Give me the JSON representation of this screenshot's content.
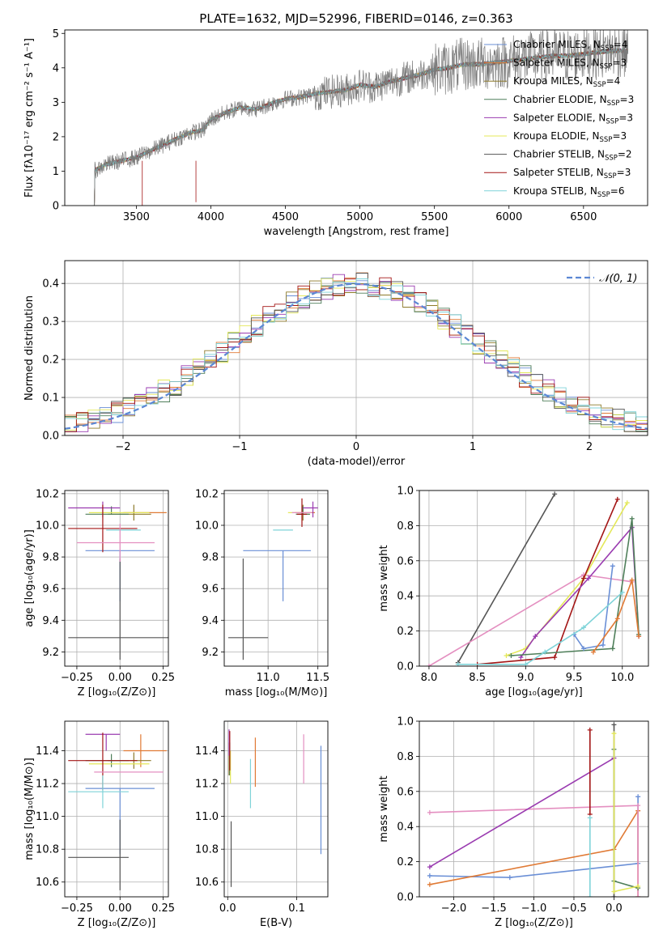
{
  "chart_data": [
    {
      "id": "spectrum",
      "type": "line",
      "title": "PLATE=1632, MJD=52996, FIBERID=0146, z=0.363",
      "xlabel": "wavelength [Angstrom, rest frame]",
      "ylabel": "Flux [fλ10⁻¹⁷ erg cm⁻² s⁻¹ A⁻¹]",
      "xlim": [
        3020,
        6930
      ],
      "ylim": [
        0,
        5.1
      ],
      "xticks": [
        3500,
        4000,
        4500,
        5000,
        5500,
        6000,
        6500
      ],
      "yticks": [
        0,
        1,
        2,
        3,
        4,
        5
      ],
      "grid": false,
      "legend_position": "right",
      "data_range": [
        3210,
        6800
      ],
      "model_points": {
        "x": [
          3210,
          3300,
          3400,
          3500,
          3550,
          3650,
          3750,
          3850,
          3950,
          4000,
          4100,
          4200,
          4300,
          4400,
          4500,
          4600,
          4700,
          4800,
          4900,
          5000,
          5100,
          5200,
          5300,
          5400,
          5500,
          5600,
          5700,
          5800,
          5900,
          6000,
          6100,
          6200,
          6300,
          6400,
          6500,
          6600,
          6700,
          6800
        ],
        "y": [
          1.0,
          1.2,
          1.3,
          1.4,
          1.5,
          1.7,
          1.9,
          2.1,
          2.2,
          2.5,
          2.7,
          2.85,
          2.8,
          2.95,
          3.1,
          3.15,
          3.25,
          3.3,
          3.35,
          3.5,
          3.45,
          3.6,
          3.7,
          3.8,
          3.95,
          4.0,
          4.1,
          4.1,
          4.15,
          4.2,
          4.25,
          4.3,
          4.35,
          4.35,
          4.4,
          4.45,
          4.5,
          4.5
        ]
      },
      "series": [
        {
          "name": "Chabrier MILES",
          "nssp": "4",
          "color": "#6a8fd6"
        },
        {
          "name": "Salpeter MILES",
          "nssp": "3",
          "color": "#e07a35"
        },
        {
          "name": "Kroupa MILES",
          "nssp": "4",
          "color": "#8d7a2a"
        },
        {
          "name": "Chabrier ELODIE",
          "nssp": "3",
          "color": "#4f7f5a"
        },
        {
          "name": "Salpeter ELODIE",
          "nssp": "3",
          "color": "#9a3bb0"
        },
        {
          "name": "Kroupa ELODIE",
          "nssp": "3",
          "color": "#e4e85a"
        },
        {
          "name": "Chabrier STELIB",
          "nssp": "2",
          "color": "#555555"
        },
        {
          "name": "Salpeter STELIB",
          "nssp": "3",
          "color": "#a31515"
        },
        {
          "name": "Kroupa STELIB",
          "nssp": "6",
          "color": "#7fd3d8"
        }
      ]
    },
    {
      "id": "residuals",
      "type": "histogram",
      "xlabel": "(data-model)/error",
      "ylabel": "Normed distribution",
      "xlim": [
        -2.5,
        2.5
      ],
      "ylim": [
        0,
        0.46
      ],
      "xticks": [
        -2,
        -1,
        0,
        1,
        2
      ],
      "yticks": [
        0.0,
        0.1,
        0.2,
        0.3,
        0.4
      ],
      "grid": true,
      "legend_position": "top-right",
      "reference_curve": {
        "name": "𝒩(0, 1)",
        "color": "#5b87d4",
        "style": "dashed"
      },
      "bin_width": 0.1,
      "bin_start": -2.5
    },
    {
      "id": "age_vs_Z",
      "type": "errorbar",
      "xlabel": "Z [log₁₀(Z/Z⊙)]",
      "ylabel": "age  [log₁₀(age/yr)]",
      "xlim": [
        -0.32,
        0.28
      ],
      "ylim": [
        9.11,
        10.22
      ],
      "xticks": [
        -0.25,
        0.0,
        0.25
      ],
      "xticklabels": [
        "−0.25",
        "0.00",
        "0.25"
      ],
      "yticks": [
        9.2,
        9.4,
        9.6,
        9.8,
        10.0,
        10.2
      ],
      "grid": true,
      "points": [
        {
          "color": "#6a8fd6",
          "x": 0.0,
          "xerr": [
            0.2,
            0.2
          ],
          "y": 9.84,
          "yerr": [
            0.32,
            0.0
          ]
        },
        {
          "color": "#e07a35",
          "x": 0.12,
          "xerr": [
            0.1,
            0.15
          ],
          "y": 10.08,
          "yerr": [
            0.0,
            0.0
          ]
        },
        {
          "color": "#8d7a2a",
          "x": 0.08,
          "xerr": [
            0.15,
            0.1
          ],
          "y": 10.07,
          "yerr": [
            0.04,
            0.06
          ]
        },
        {
          "color": "#4f7f5a",
          "x": -0.05,
          "xerr": [
            0.15,
            0.1
          ],
          "y": 10.07,
          "yerr": [
            0.0,
            0.05
          ]
        },
        {
          "color": "#9a3bb0",
          "x": -0.1,
          "xerr": [
            0.2,
            0.1
          ],
          "y": 10.11,
          "yerr": [
            0.06,
            0.04
          ]
        },
        {
          "color": "#e4e85a",
          "x": 0.02,
          "xerr": [
            0.2,
            0.15
          ],
          "y": 10.08,
          "yerr": [
            0.0,
            0.0
          ]
        },
        {
          "color": "#555555",
          "x": 0.0,
          "xerr": [
            0.3,
            0.3
          ],
          "y": 9.29,
          "yerr": [
            0.14,
            0.5
          ]
        },
        {
          "color": "#a31515",
          "x": -0.1,
          "xerr": [
            0.2,
            0.2
          ],
          "y": 9.98,
          "yerr": [
            0.15,
            0.15
          ]
        },
        {
          "color": "#7fd3d8",
          "x": 0.02,
          "xerr": [
            0.1,
            0.1
          ],
          "y": 9.97,
          "yerr": [
            0.0,
            0.0
          ]
        },
        {
          "color": "#e48fc0",
          "x": 0.0,
          "xerr": [
            0.25,
            0.2
          ],
          "y": 9.89,
          "yerr": [
            0.12,
            0.12
          ]
        }
      ]
    },
    {
      "id": "age_vs_mass",
      "type": "errorbar",
      "xlabel": "mass [log₁₀(M/M⊙)]",
      "ylabel": "",
      "xlim": [
        10.56,
        11.6
      ],
      "ylim": [
        9.11,
        10.22
      ],
      "xticks": [
        11.0,
        11.5
      ],
      "yticks": [
        9.2,
        9.4,
        9.6,
        9.8,
        10.0,
        10.2
      ],
      "grid": true,
      "points": [
        {
          "color": "#6a8fd6",
          "x": 11.15,
          "xerr": [
            0.4,
            0.28
          ],
          "y": 9.84,
          "yerr": [
            0.32,
            0.0
          ]
        },
        {
          "color": "#e07a35",
          "x": 11.37,
          "xerr": [
            0.1,
            0.1
          ],
          "y": 10.08,
          "yerr": [
            0.0,
            0.0
          ]
        },
        {
          "color": "#8d7a2a",
          "x": 11.35,
          "xerr": [
            0.07,
            0.07
          ],
          "y": 10.07,
          "yerr": [
            0.04,
            0.06
          ]
        },
        {
          "color": "#4f7f5a",
          "x": 11.35,
          "xerr": [
            0.07,
            0.07
          ],
          "y": 10.07,
          "yerr": [
            0.0,
            0.05
          ]
        },
        {
          "color": "#9a3bb0",
          "x": 11.45,
          "xerr": [
            0.1,
            0.05
          ],
          "y": 10.11,
          "yerr": [
            0.06,
            0.04
          ]
        },
        {
          "color": "#e4e85a",
          "x": 11.28,
          "xerr": [
            0.08,
            0.08
          ],
          "y": 10.08,
          "yerr": [
            0.0,
            0.0
          ]
        },
        {
          "color": "#555555",
          "x": 10.75,
          "xerr": [
            0.15,
            0.25
          ],
          "y": 9.29,
          "yerr": [
            0.14,
            0.5
          ]
        },
        {
          "color": "#a31515",
          "x": 11.34,
          "xerr": [
            0.05,
            0.05
          ],
          "y": 10.07,
          "yerr": [
            0.08,
            0.1
          ]
        },
        {
          "color": "#7fd3d8",
          "x": 11.15,
          "xerr": [
            0.1,
            0.1
          ],
          "y": 9.97,
          "yerr": [
            0.0,
            0.0
          ]
        },
        {
          "color": "#e48fc0",
          "x": 11.34,
          "xerr": [
            0.1,
            0.1
          ],
          "y": 10.08,
          "yerr": [
            0.0,
            0.0
          ]
        }
      ]
    },
    {
      "id": "massweight_vs_age",
      "type": "line",
      "xlabel": "age  [log₁₀(age/yr)]",
      "ylabel": "mass weight",
      "xlim": [
        7.9,
        10.27
      ],
      "ylim": [
        0,
        1.0
      ],
      "xticks": [
        8.0,
        8.5,
        9.0,
        9.5,
        10.0
      ],
      "yticks": [
        0.0,
        0.2,
        0.4,
        0.6,
        0.8,
        1.0
      ],
      "grid": true,
      "series": [
        {
          "color": "#555555",
          "x": [
            8.3,
            9.3
          ],
          "y": [
            0.02,
            0.98
          ]
        },
        {
          "color": "#e48fc0",
          "x": [
            8.0,
            9.6,
            10.1
          ],
          "y": [
            0.0,
            0.52,
            0.48
          ]
        },
        {
          "color": "#e4e85a",
          "x": [
            8.8,
            9.0,
            9.6,
            10.05
          ],
          "y": [
            0.06,
            0.1,
            0.5,
            0.93
          ]
        },
        {
          "color": "#a31515",
          "x": [
            8.5,
            9.3,
            9.6,
            9.95
          ],
          "y": [
            0.01,
            0.05,
            0.5,
            0.95
          ]
        },
        {
          "color": "#9a3bb0",
          "x": [
            8.95,
            9.1,
            9.65,
            10.1,
            10.17
          ],
          "y": [
            0.05,
            0.17,
            0.5,
            0.79,
            0.17
          ]
        },
        {
          "color": "#4f7f5a",
          "x": [
            8.85,
            9.9,
            10.1,
            10.17
          ],
          "y": [
            0.06,
            0.1,
            0.84,
            0.18
          ]
        },
        {
          "color": "#6a8fd6",
          "x": [
            9.5,
            9.6,
            9.8,
            9.9
          ],
          "y": [
            0.18,
            0.1,
            0.12,
            0.57
          ]
        },
        {
          "color": "#e07a35",
          "x": [
            9.7,
            9.95,
            10.1,
            10.17
          ],
          "y": [
            0.08,
            0.27,
            0.49,
            0.17
          ]
        },
        {
          "color": "#7fd3d8",
          "x": [
            8.3,
            9.0,
            9.2,
            9.6,
            10.0
          ],
          "y": [
            0.01,
            0.01,
            0.08,
            0.22,
            0.42
          ]
        }
      ]
    },
    {
      "id": "mass_vs_Z",
      "type": "errorbar",
      "xlabel": "Z [log₁₀(Z/Z⊙)]",
      "ylabel": "mass [log₁₀(M/M⊙)]",
      "xlim": [
        -0.32,
        0.28
      ],
      "ylim": [
        10.51,
        11.58
      ],
      "xticks": [
        -0.25,
        0.0,
        0.25
      ],
      "xticklabels": [
        "−0.25",
        "0.00",
        "0.25"
      ],
      "yticks": [
        10.6,
        10.8,
        11.0,
        11.2,
        11.4
      ],
      "grid": true,
      "points": [
        {
          "color": "#6a8fd6",
          "x": 0.0,
          "xerr": [
            0.2,
            0.2
          ],
          "y": 11.17,
          "yerr": [
            0.4,
            0.0
          ]
        },
        {
          "color": "#e07a35",
          "x": 0.12,
          "xerr": [
            0.1,
            0.15
          ],
          "y": 11.4,
          "yerr": [
            0.1,
            0.1
          ]
        },
        {
          "color": "#8d7a2a",
          "x": 0.08,
          "xerr": [
            0.15,
            0.1
          ],
          "y": 11.34,
          "yerr": [
            0.05,
            0.05
          ]
        },
        {
          "color": "#4f7f5a",
          "x": -0.05,
          "xerr": [
            0.15,
            0.1
          ],
          "y": 11.34,
          "yerr": [
            0.04,
            0.04
          ]
        },
        {
          "color": "#9a3bb0",
          "x": -0.08,
          "xerr": [
            0.12,
            0.08
          ],
          "y": 11.5,
          "yerr": [
            0.1,
            0.0
          ]
        },
        {
          "color": "#e4e85a",
          "x": 0.02,
          "xerr": [
            0.2,
            0.15
          ],
          "y": 11.32,
          "yerr": [
            0.0,
            0.0
          ]
        },
        {
          "color": "#555555",
          "x": 0.0,
          "xerr": [
            0.3,
            0.05
          ],
          "y": 10.75,
          "yerr": [
            0.2,
            0.23
          ]
        },
        {
          "color": "#a31515",
          "x": -0.1,
          "xerr": [
            0.2,
            0.2
          ],
          "y": 11.34,
          "yerr": [
            0.18,
            0.17
          ]
        },
        {
          "color": "#7fd3d8",
          "x": -0.1,
          "xerr": [
            0.2,
            0.15
          ],
          "y": 11.15,
          "yerr": [
            0.1,
            0.1
          ]
        },
        {
          "color": "#e48fc0",
          "x": 0.05,
          "xerr": [
            0.2,
            0.2
          ],
          "y": 11.27,
          "yerr": [
            0.0,
            0.0
          ]
        }
      ]
    },
    {
      "id": "mass_vs_ebv",
      "type": "errorbar",
      "xlabel": "E(B-V)",
      "ylabel": "",
      "xlim": [
        -0.005,
        0.145
      ],
      "ylim": [
        10.51,
        11.58
      ],
      "xticks": [
        0.0,
        0.1
      ],
      "xticklabels": [
        "0.0",
        "0.1"
      ],
      "yticks": [
        10.6,
        10.8,
        11.0,
        11.2,
        11.4
      ],
      "grid": true,
      "points": [
        {
          "color": "#6a8fd6",
          "x": 0.135,
          "xerr": [
            0,
            0
          ],
          "y": 11.1,
          "yerr": [
            0.33,
            0.33
          ]
        },
        {
          "color": "#e07a35",
          "x": 0.04,
          "xerr": [
            0,
            0
          ],
          "y": 11.33,
          "yerr": [
            0.15,
            0.15
          ]
        },
        {
          "color": "#8d7a2a",
          "x": 0.002,
          "xerr": [
            0,
            0
          ],
          "y": 11.35,
          "yerr": [
            0.1,
            0.1
          ]
        },
        {
          "color": "#4f7f5a",
          "x": 0.003,
          "xerr": [
            0,
            0
          ],
          "y": 11.35,
          "yerr": [
            0.1,
            0.1
          ]
        },
        {
          "color": "#9a3bb0",
          "x": 0.002,
          "xerr": [
            0,
            0
          ],
          "y": 11.45,
          "yerr": [
            0.08,
            0.08
          ]
        },
        {
          "color": "#e4e85a",
          "x": 0.004,
          "xerr": [
            0,
            0
          ],
          "y": 11.3,
          "yerr": [
            0.1,
            0.1
          ]
        },
        {
          "color": "#555555",
          "x": 0.005,
          "xerr": [
            0,
            0
          ],
          "y": 10.77,
          "yerr": [
            0.2,
            0.2
          ]
        },
        {
          "color": "#a31515",
          "x": 0.003,
          "xerr": [
            0,
            0
          ],
          "y": 11.4,
          "yerr": [
            0.12,
            0.12
          ]
        },
        {
          "color": "#7fd3d8",
          "x": 0.033,
          "xerr": [
            0,
            0
          ],
          "y": 11.2,
          "yerr": [
            0.15,
            0.15
          ]
        },
        {
          "color": "#e48fc0",
          "x": 0.11,
          "xerr": [
            0,
            0
          ],
          "y": 11.35,
          "yerr": [
            0.15,
            0.15
          ]
        }
      ]
    },
    {
      "id": "massweight_vs_Z",
      "type": "line",
      "xlabel": "Z [log₁₀(Z/Z⊙)]",
      "ylabel": "mass weight",
      "xlim": [
        -2.43,
        0.43
      ],
      "ylim": [
        0,
        1.0
      ],
      "xticks": [
        -2.0,
        -1.5,
        -1.0,
        -0.5,
        0.0
      ],
      "xticklabels": [
        "−2.0",
        "−1.5",
        "−1.0",
        "−0.5",
        "0.0"
      ],
      "yticks": [
        0.0,
        0.2,
        0.4,
        0.6,
        0.8,
        1.0
      ],
      "grid": true,
      "series": [
        {
          "color": "#6a8fd6",
          "x": [
            -2.3,
            -1.3,
            0.3,
            0.3
          ],
          "y": [
            0.12,
            0.11,
            0.19,
            0.57
          ]
        },
        {
          "color": "#e07a35",
          "x": [
            -2.3,
            0.0,
            0.3,
            0.3
          ],
          "y": [
            0.07,
            0.27,
            0.49,
            0.0
          ]
        },
        {
          "color": "#e48fc0",
          "x": [
            -2.3,
            0.3,
            0.3
          ],
          "y": [
            0.48,
            0.52,
            0.0
          ]
        },
        {
          "color": "#9a3bb0",
          "x": [
            -2.3,
            0.0
          ],
          "y": [
            0.17,
            0.79
          ]
        },
        {
          "color": "#a31515",
          "x": [
            -0.3,
            -0.3
          ],
          "y": [
            0.47,
            0.95
          ]
        },
        {
          "color": "#555555",
          "x": [
            0.0,
            0.0
          ],
          "y": [
            0.0,
            0.98
          ]
        },
        {
          "color": "#4f7f5a",
          "x": [
            0.0,
            0.0,
            0.3
          ],
          "y": [
            0.84,
            0.09,
            0.05
          ]
        },
        {
          "color": "#7fd3d8",
          "x": [
            -0.3,
            -0.3
          ],
          "y": [
            0.0,
            0.45
          ]
        },
        {
          "color": "#e4e85a",
          "x": [
            0.0,
            0.0,
            0.3
          ],
          "y": [
            0.93,
            0.03,
            0.06
          ]
        }
      ]
    }
  ]
}
